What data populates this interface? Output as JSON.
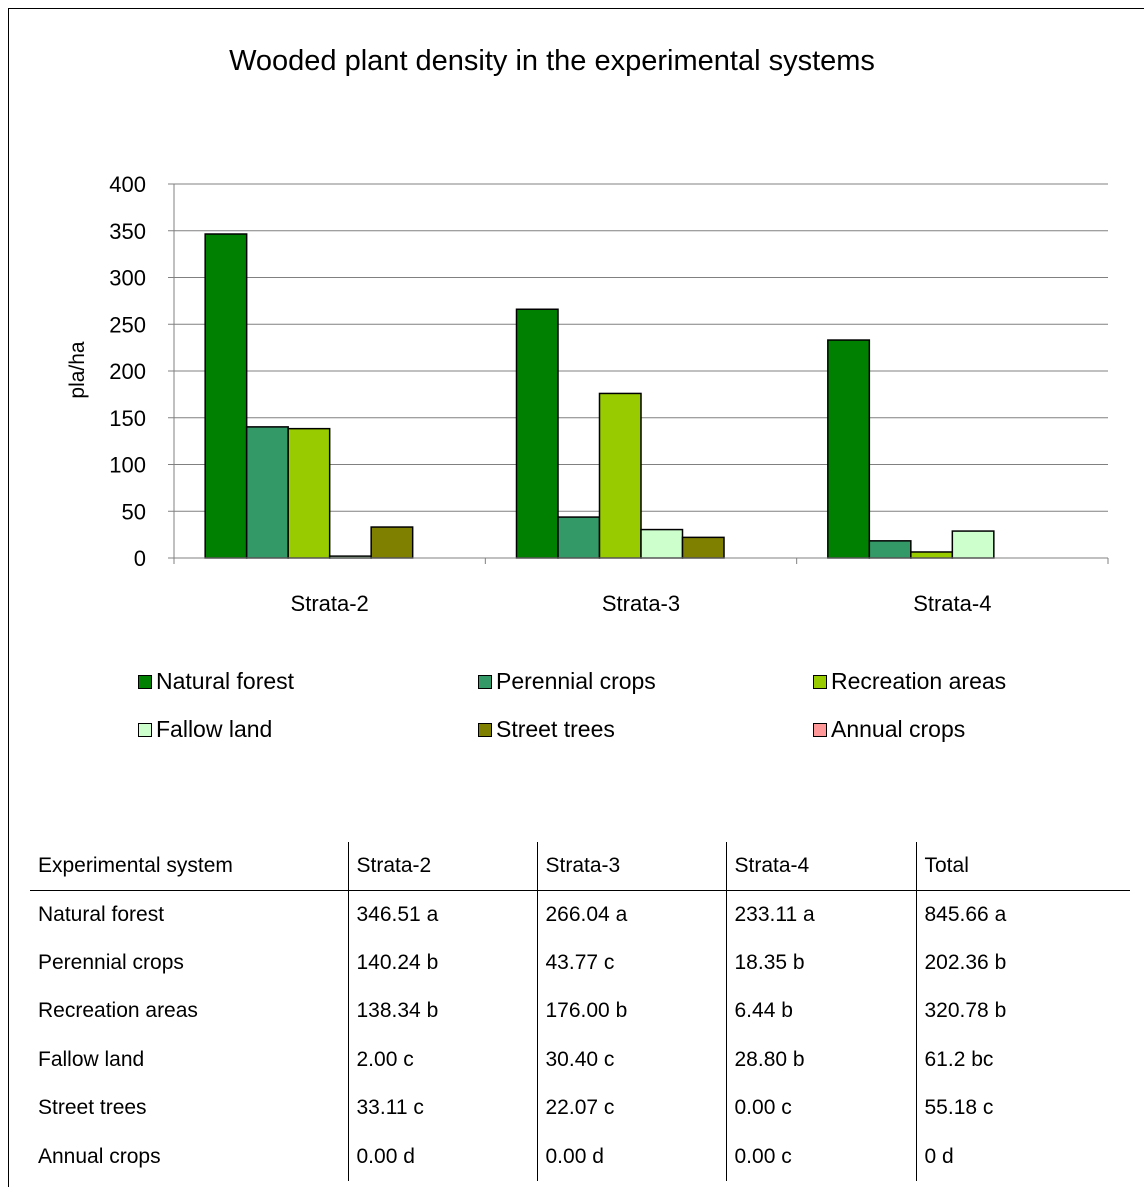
{
  "chart_data": {
    "type": "bar",
    "title": "Wooded plant density in the experimental systems",
    "ylabel": "pla/ha",
    "xlabel": "",
    "ylim": [
      0,
      400
    ],
    "yticks": [
      0,
      50,
      100,
      150,
      200,
      250,
      300,
      350,
      400
    ],
    "grid": true,
    "legend_position": "bottom",
    "categories": [
      "Strata-2",
      "Strata-3",
      "Strata-4"
    ],
    "series": [
      {
        "name": "Natural forest",
        "color": "#008000",
        "values": [
          346.51,
          266.04,
          233.11
        ]
      },
      {
        "name": "Perennial crops",
        "color": "#339966",
        "values": [
          140.24,
          43.77,
          18.35
        ]
      },
      {
        "name": "Recreation areas",
        "color": "#99CC00",
        "values": [
          138.34,
          176.0,
          6.44
        ]
      },
      {
        "name": "Fallow land",
        "color": "#CCFFCC",
        "values": [
          2.0,
          30.4,
          28.8
        ]
      },
      {
        "name": "Street trees",
        "color": "#808000",
        "values": [
          33.11,
          22.07,
          0.0
        ]
      },
      {
        "name": "Annual crops",
        "color": "#FF9999",
        "values": [
          0.0,
          0.0,
          0.0
        ]
      }
    ]
  },
  "table": {
    "headers": [
      "Experimental system",
      "Strata-2",
      "Strata-3",
      "Strata-4",
      "Total"
    ],
    "rows": [
      [
        "Natural forest",
        "346.51 a",
        "266.04 a",
        "233.11 a",
        "845.66 a"
      ],
      [
        "Perennial crops",
        "140.24 b",
        "43.77 c",
        "18.35 b",
        "202.36 b"
      ],
      [
        "Recreation areas",
        "138.34 b",
        "176.00 b",
        "6.44 b",
        "320.78 b"
      ],
      [
        "Fallow land",
        "2.00 c",
        "30.40 c",
        "28.80 b",
        "61.2 bc"
      ],
      [
        "Street trees",
        "33.11 c",
        "22.07 c",
        "0.00 c",
        "55.18 c"
      ],
      [
        "Annual crops",
        "0.00 d",
        "0.00 d",
        "0.00 c",
        "0 d"
      ]
    ]
  }
}
